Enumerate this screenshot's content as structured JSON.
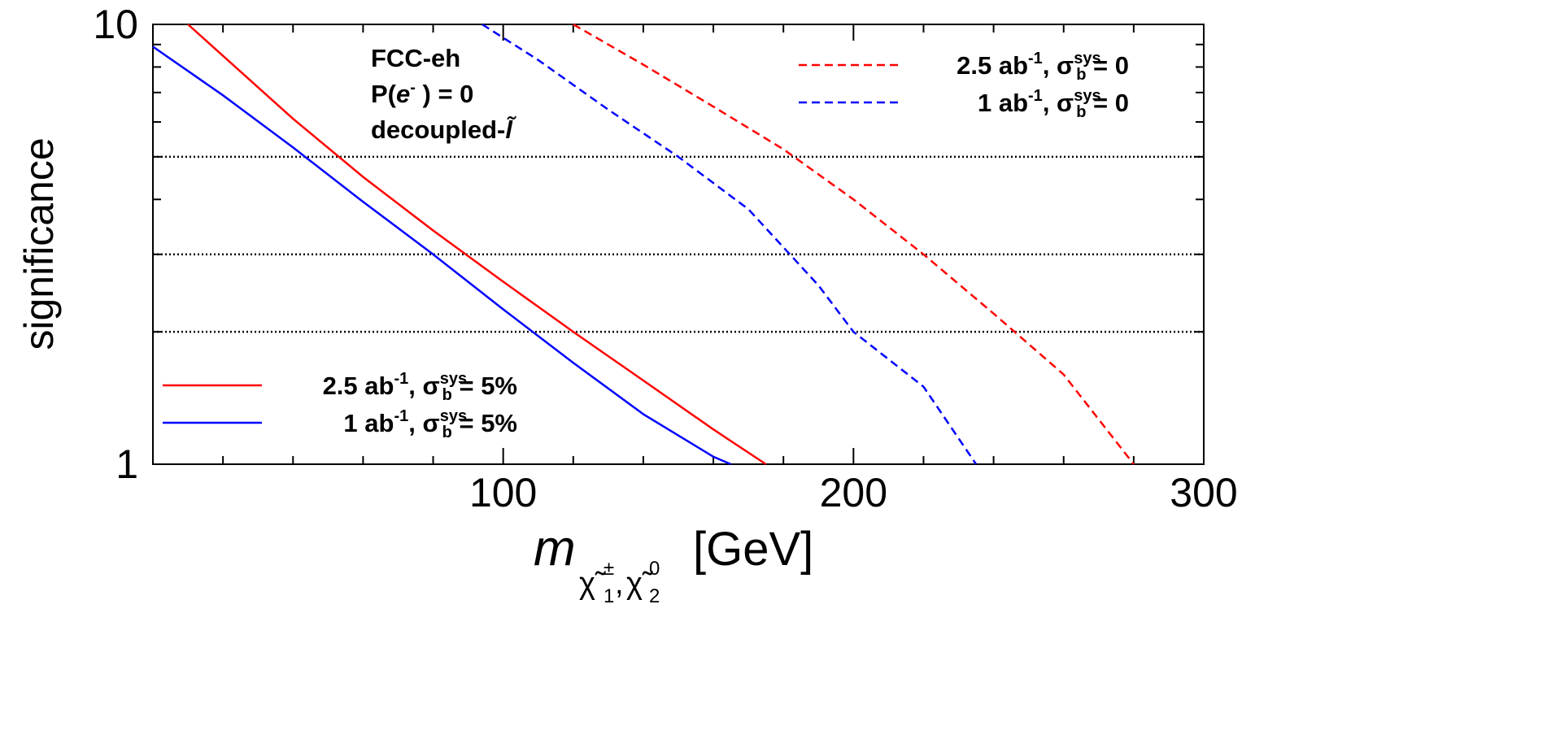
{
  "chart_data": {
    "type": "line",
    "title": "",
    "ylabel": "significance",
    "xlabel": {
      "symbol": "m",
      "sub1": "χ̃",
      "sub1_sub": "1",
      "sub1_sup": "±",
      "comma": ",",
      "sub2": "χ̃",
      "sub2_sub": "2",
      "sub2_sup": "0",
      "unit": "[GeV]"
    },
    "xlim": [
      0,
      300
    ],
    "ylim": [
      1,
      10
    ],
    "yscale": "log",
    "x_ticks": [
      {
        "value": 100,
        "label": "100"
      },
      {
        "value": 200,
        "label": "200"
      },
      {
        "value": 300,
        "label": "300"
      }
    ],
    "y_ticks": [
      {
        "value": 1,
        "label": "1"
      },
      {
        "value": 10,
        "label": "10"
      }
    ],
    "x_minor_step": 20,
    "y_minor": [
      2,
      3,
      4,
      5,
      6,
      7,
      8,
      9
    ],
    "reference_lines": [
      2,
      3,
      5
    ],
    "annotations": {
      "line1": "FCC-eh",
      "line2_pre": "P(",
      "line2_e": "e",
      "line2_sup": "-",
      "line2_post": " ) = 0",
      "line3_pre": "decoupled-",
      "line3_l": "l̃"
    },
    "series": [
      {
        "id": "solid-red",
        "color": "#ff0000",
        "dash": "solid",
        "lumi": "2.5 ab",
        "lumi_sup": "-1",
        "sigma": "σ",
        "sigma_sub": "b",
        "sigma_sup": "sys.",
        "tail": " = 5%",
        "points": [
          [
            10,
            10.0
          ],
          [
            40,
            6.1
          ],
          [
            60,
            4.5
          ],
          [
            80,
            3.4
          ],
          [
            100,
            2.6
          ],
          [
            120,
            2.0
          ],
          [
            140,
            1.55
          ],
          [
            160,
            1.2
          ],
          [
            175,
            1.0
          ]
        ]
      },
      {
        "id": "solid-blue",
        "color": "#0000ff",
        "dash": "solid",
        "lumi": "1 ab",
        "lumi_sup": "-1",
        "sigma": "σ",
        "sigma_sub": "b",
        "sigma_sup": "sys.",
        "tail": " = 5%",
        "points": [
          [
            0,
            8.9
          ],
          [
            20,
            6.9
          ],
          [
            40,
            5.25
          ],
          [
            60,
            3.95
          ],
          [
            80,
            3.0
          ],
          [
            100,
            2.25
          ],
          [
            120,
            1.7
          ],
          [
            140,
            1.3
          ],
          [
            160,
            1.04
          ],
          [
            165,
            1.0
          ]
        ]
      },
      {
        "id": "dashed-red",
        "color": "#ff0000",
        "dash": "dashed",
        "lumi": "2.5 ab",
        "lumi_sup": "-1",
        "sigma": "σ",
        "sigma_sub": "b",
        "sigma_sup": "sys.",
        "tail": " = 0",
        "points": [
          [
            120,
            10.0
          ],
          [
            140,
            8.1
          ],
          [
            160,
            6.5
          ],
          [
            180,
            5.2
          ],
          [
            200,
            4.0
          ],
          [
            220,
            3.0
          ],
          [
            240,
            2.2
          ],
          [
            260,
            1.6
          ],
          [
            280,
            1.0
          ]
        ]
      },
      {
        "id": "dashed-blue",
        "color": "#0000ff",
        "dash": "dashed",
        "lumi": "1 ab",
        "lumi_sup": "-1",
        "sigma": "σ",
        "sigma_sub": "b",
        "sigma_sup": "sys.",
        "tail": " = 0",
        "points": [
          [
            94,
            10.0
          ],
          [
            110,
            8.3
          ],
          [
            130,
            6.4
          ],
          [
            150,
            5.0
          ],
          [
            170,
            3.8
          ],
          [
            190,
            2.55
          ],
          [
            200,
            2.0
          ],
          [
            220,
            1.5
          ],
          [
            235,
            1.0
          ]
        ]
      }
    ],
    "legends": {
      "top_right": [
        "dashed-red",
        "dashed-blue"
      ],
      "bottom_left": [
        "solid-red",
        "solid-blue"
      ]
    }
  }
}
